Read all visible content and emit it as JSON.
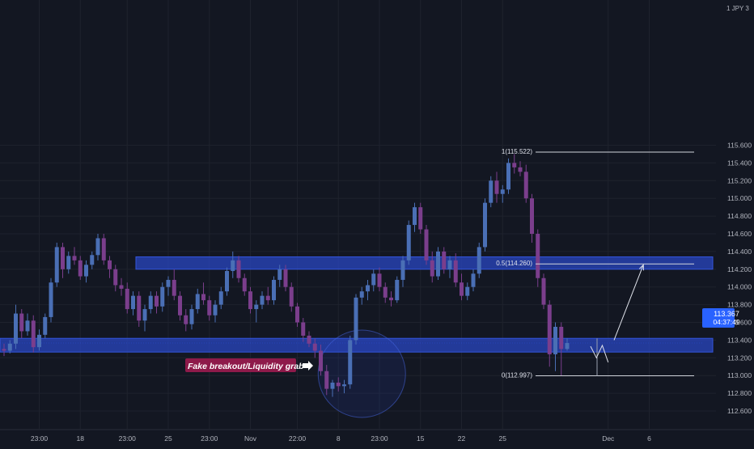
{
  "symbol_badge": "1 JPY 3",
  "price_label": {
    "price": "113.367",
    "countdown": "04:37:49",
    "color": "#2962ff"
  },
  "chart_data": {
    "type": "candlestick",
    "title": "",
    "y_ticks": [
      112.6,
      112.8,
      113.0,
      113.2,
      113.4,
      113.6,
      113.8,
      114.0,
      114.2,
      114.4,
      114.6,
      114.8,
      115.0,
      115.2,
      115.4,
      115.6
    ],
    "y_tick_labels": [
      "112.600",
      "112.800",
      "113.000",
      "113.200",
      "113.400",
      "113.600",
      "113.800",
      "114.000",
      "114.200",
      "114.400",
      "114.600",
      "114.800",
      "115.000",
      "115.200",
      "115.400",
      "115.600"
    ],
    "x_tick_labels": [
      "23:00",
      "18",
      "23:00",
      "25",
      "23:00",
      "Nov",
      "22:00",
      "8",
      "23:00",
      "15",
      "22",
      "25",
      "Dec",
      "6"
    ],
    "x_tick_index": [
      6,
      13,
      21,
      28,
      35,
      42,
      50,
      57,
      64,
      71,
      78,
      85,
      103,
      110
    ],
    "bull_color": "#4a6fb5",
    "bear_color": "#7b3e8c",
    "zones": [
      {
        "from": 114.2,
        "to": 114.34
      },
      {
        "from": 113.265,
        "to": 113.42
      }
    ],
    "fib_levels": [
      {
        "label": "1(115.522)",
        "value": 115.522
      },
      {
        "label": "0.5(114.260)",
        "value": 114.26
      },
      {
        "label": "0(112.997)",
        "value": 112.997
      }
    ],
    "annotation": {
      "text": "Fake breakout/Liquidity grab",
      "color": "#8e1a4a"
    },
    "liquidity_circle_center": {
      "index": 61,
      "value": 113.02
    },
    "projection_path": [
      {
        "index": 100,
        "value": 113.33
      },
      {
        "index": 101,
        "value": 113.2
      },
      {
        "index": 102,
        "value": 113.34
      },
      {
        "index": 103,
        "value": 113.15
      }
    ],
    "projection_arrow": [
      {
        "index": 104,
        "value": 113.4
      },
      {
        "index": 109,
        "value": 114.25
      }
    ],
    "candles": [
      [
        113.3,
        113.36,
        113.22,
        113.28
      ],
      [
        113.28,
        113.4,
        113.25,
        113.36
      ],
      [
        113.36,
        113.8,
        113.3,
        113.7
      ],
      [
        113.7,
        113.75,
        113.42,
        113.5
      ],
      [
        113.5,
        113.7,
        113.45,
        113.62
      ],
      [
        113.62,
        113.68,
        113.26,
        113.32
      ],
      [
        113.32,
        113.52,
        113.28,
        113.46
      ],
      [
        113.46,
        113.7,
        113.42,
        113.66
      ],
      [
        113.66,
        114.1,
        113.6,
        114.05
      ],
      [
        114.05,
        114.5,
        114.0,
        114.45
      ],
      [
        114.45,
        114.5,
        114.1,
        114.2
      ],
      [
        114.2,
        114.4,
        114.15,
        114.35
      ],
      [
        114.35,
        114.45,
        114.25,
        114.3
      ],
      [
        114.3,
        114.35,
        114.08,
        114.12
      ],
      [
        114.12,
        114.3,
        114.05,
        114.25
      ],
      [
        114.25,
        114.4,
        114.2,
        114.36
      ],
      [
        114.36,
        114.6,
        114.3,
        114.55
      ],
      [
        114.55,
        114.6,
        114.25,
        114.3
      ],
      [
        114.3,
        114.35,
        114.1,
        114.2
      ],
      [
        114.2,
        114.25,
        113.95,
        114.02
      ],
      [
        114.02,
        114.1,
        113.9,
        113.98
      ],
      [
        113.98,
        114.05,
        113.7,
        113.75
      ],
      [
        113.75,
        113.95,
        113.68,
        113.9
      ],
      [
        113.9,
        113.95,
        113.55,
        113.62
      ],
      [
        113.62,
        113.8,
        113.5,
        113.75
      ],
      [
        113.75,
        113.95,
        113.7,
        113.9
      ],
      [
        113.9,
        113.95,
        113.7,
        113.78
      ],
      [
        113.78,
        114.05,
        113.72,
        114.0
      ],
      [
        114.0,
        114.12,
        113.9,
        114.08
      ],
      [
        114.08,
        114.2,
        113.85,
        113.9
      ],
      [
        113.9,
        113.95,
        113.62,
        113.68
      ],
      [
        113.68,
        113.75,
        113.5,
        113.58
      ],
      [
        113.58,
        113.8,
        113.52,
        113.75
      ],
      [
        113.75,
        113.98,
        113.7,
        113.92
      ],
      [
        113.92,
        114.05,
        113.8,
        113.85
      ],
      [
        113.85,
        113.9,
        113.62,
        113.68
      ],
      [
        113.68,
        113.85,
        113.6,
        113.8
      ],
      [
        113.8,
        114.0,
        113.75,
        113.95
      ],
      [
        113.95,
        114.22,
        113.9,
        114.18
      ],
      [
        114.18,
        114.4,
        114.1,
        114.3
      ],
      [
        114.3,
        114.35,
        114.05,
        114.1
      ],
      [
        114.1,
        114.15,
        113.9,
        113.95
      ],
      [
        113.95,
        114.0,
        113.7,
        113.75
      ],
      [
        113.75,
        113.85,
        113.6,
        113.8
      ],
      [
        113.8,
        113.95,
        113.75,
        113.9
      ],
      [
        113.9,
        114.0,
        113.8,
        113.85
      ],
      [
        113.85,
        114.12,
        113.8,
        114.08
      ],
      [
        114.08,
        114.25,
        114.0,
        114.2
      ],
      [
        114.2,
        114.25,
        113.95,
        114.0
      ],
      [
        114.0,
        114.05,
        113.72,
        113.78
      ],
      [
        113.78,
        113.82,
        113.55,
        113.6
      ],
      [
        113.6,
        113.65,
        113.38,
        113.45
      ],
      [
        113.45,
        113.5,
        113.32,
        113.36
      ],
      [
        113.36,
        113.42,
        113.2,
        113.28
      ],
      [
        113.28,
        113.35,
        113.0,
        113.05
      ],
      [
        113.05,
        113.12,
        112.78,
        112.85
      ],
      [
        112.85,
        112.95,
        112.76,
        112.92
      ],
      [
        112.92,
        112.98,
        112.82,
        112.88
      ],
      [
        112.88,
        112.95,
        112.8,
        112.9
      ],
      [
        112.9,
        113.45,
        112.85,
        113.4
      ],
      [
        113.4,
        113.92,
        113.35,
        113.88
      ],
      [
        113.88,
        114.0,
        113.8,
        113.95
      ],
      [
        113.95,
        114.08,
        113.85,
        114.02
      ],
      [
        114.02,
        114.2,
        113.95,
        114.15
      ],
      [
        114.15,
        114.22,
        113.95,
        114.0
      ],
      [
        114.0,
        114.05,
        113.82,
        113.88
      ],
      [
        113.88,
        113.95,
        113.78,
        113.85
      ],
      [
        113.85,
        114.12,
        113.82,
        114.08
      ],
      [
        114.08,
        114.35,
        114.0,
        114.3
      ],
      [
        114.3,
        114.75,
        114.25,
        114.7
      ],
      [
        114.7,
        114.95,
        114.62,
        114.9
      ],
      [
        114.9,
        114.95,
        114.6,
        114.65
      ],
      [
        114.65,
        114.7,
        114.25,
        114.3
      ],
      [
        114.3,
        114.4,
        114.05,
        114.12
      ],
      [
        114.12,
        114.45,
        114.08,
        114.4
      ],
      [
        114.4,
        114.45,
        114.15,
        114.2
      ],
      [
        114.2,
        114.35,
        114.1,
        114.3
      ],
      [
        114.3,
        114.38,
        114.0,
        114.05
      ],
      [
        114.05,
        114.15,
        113.85,
        113.9
      ],
      [
        113.9,
        114.05,
        113.85,
        114.0
      ],
      [
        114.0,
        114.2,
        113.95,
        114.15
      ],
      [
        114.15,
        114.5,
        114.1,
        114.45
      ],
      [
        114.45,
        115.0,
        114.4,
        114.95
      ],
      [
        114.95,
        115.25,
        114.9,
        115.2
      ],
      [
        115.2,
        115.3,
        114.95,
        115.05
      ],
      [
        115.05,
        115.15,
        114.95,
        115.1
      ],
      [
        115.1,
        115.45,
        115.05,
        115.4
      ],
      [
        115.4,
        115.5,
        115.28,
        115.35
      ],
      [
        115.35,
        115.42,
        115.25,
        115.3
      ],
      [
        115.3,
        115.38,
        114.95,
        115.0
      ],
      [
        115.0,
        115.05,
        114.5,
        114.6
      ],
      [
        114.6,
        114.65,
        114.0,
        114.1
      ],
      [
        114.1,
        114.15,
        113.75,
        113.8
      ],
      [
        113.8,
        113.85,
        113.1,
        113.24
      ],
      [
        113.24,
        113.6,
        113.05,
        113.55
      ],
      [
        113.55,
        113.6,
        113.0,
        113.3
      ],
      [
        113.3,
        113.42,
        113.28,
        113.367
      ]
    ]
  }
}
